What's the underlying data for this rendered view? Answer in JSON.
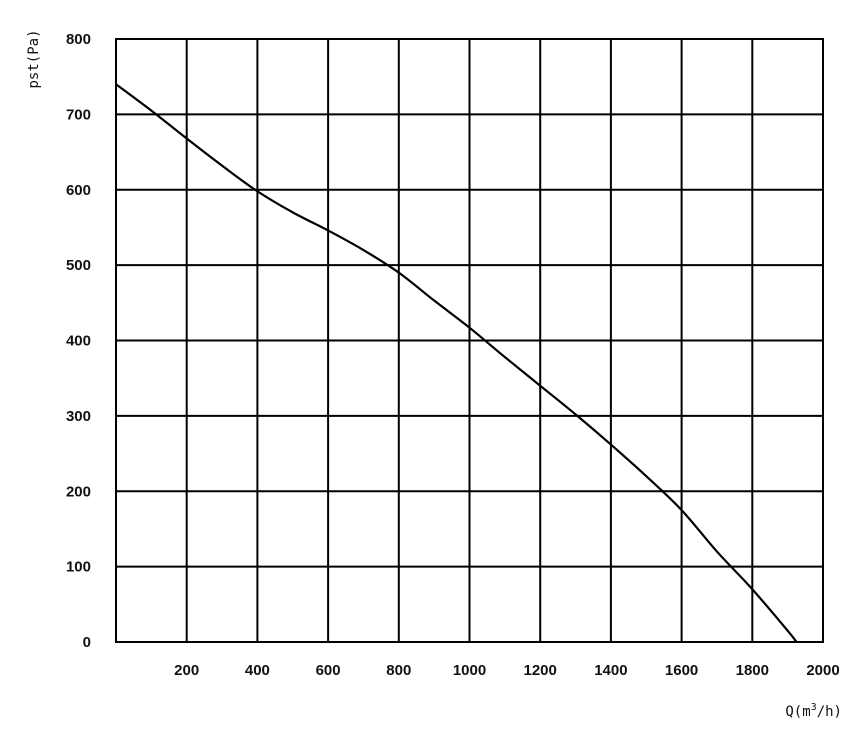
{
  "chart_data": {
    "type": "line",
    "xlabel": "Q(m³/h)",
    "ylabel": "pst(Pa)",
    "xlim": [
      0,
      2000
    ],
    "ylim": [
      0,
      800
    ],
    "x_ticks": [
      "200",
      "400",
      "600",
      "800",
      "1000",
      "1200",
      "1400",
      "1600",
      "1800",
      "2000"
    ],
    "y_ticks": [
      "0",
      "100",
      "200",
      "300",
      "400",
      "500",
      "600",
      "700",
      "800"
    ],
    "grid": true,
    "legend": "none",
    "series": [
      {
        "color": "#000000",
        "x": [
          0,
          100,
          200,
          300,
          400,
          500,
          600,
          700,
          800,
          900,
          1000,
          1100,
          1200,
          1300,
          1400,
          1500,
          1600,
          1700,
          1800,
          1900,
          1925
        ],
        "y": [
          740,
          705,
          668,
          632,
          598,
          570,
          546,
          520,
          490,
          453,
          417,
          378,
          340,
          302,
          262,
          220,
          175,
          120,
          70,
          15,
          0
        ]
      }
    ]
  }
}
